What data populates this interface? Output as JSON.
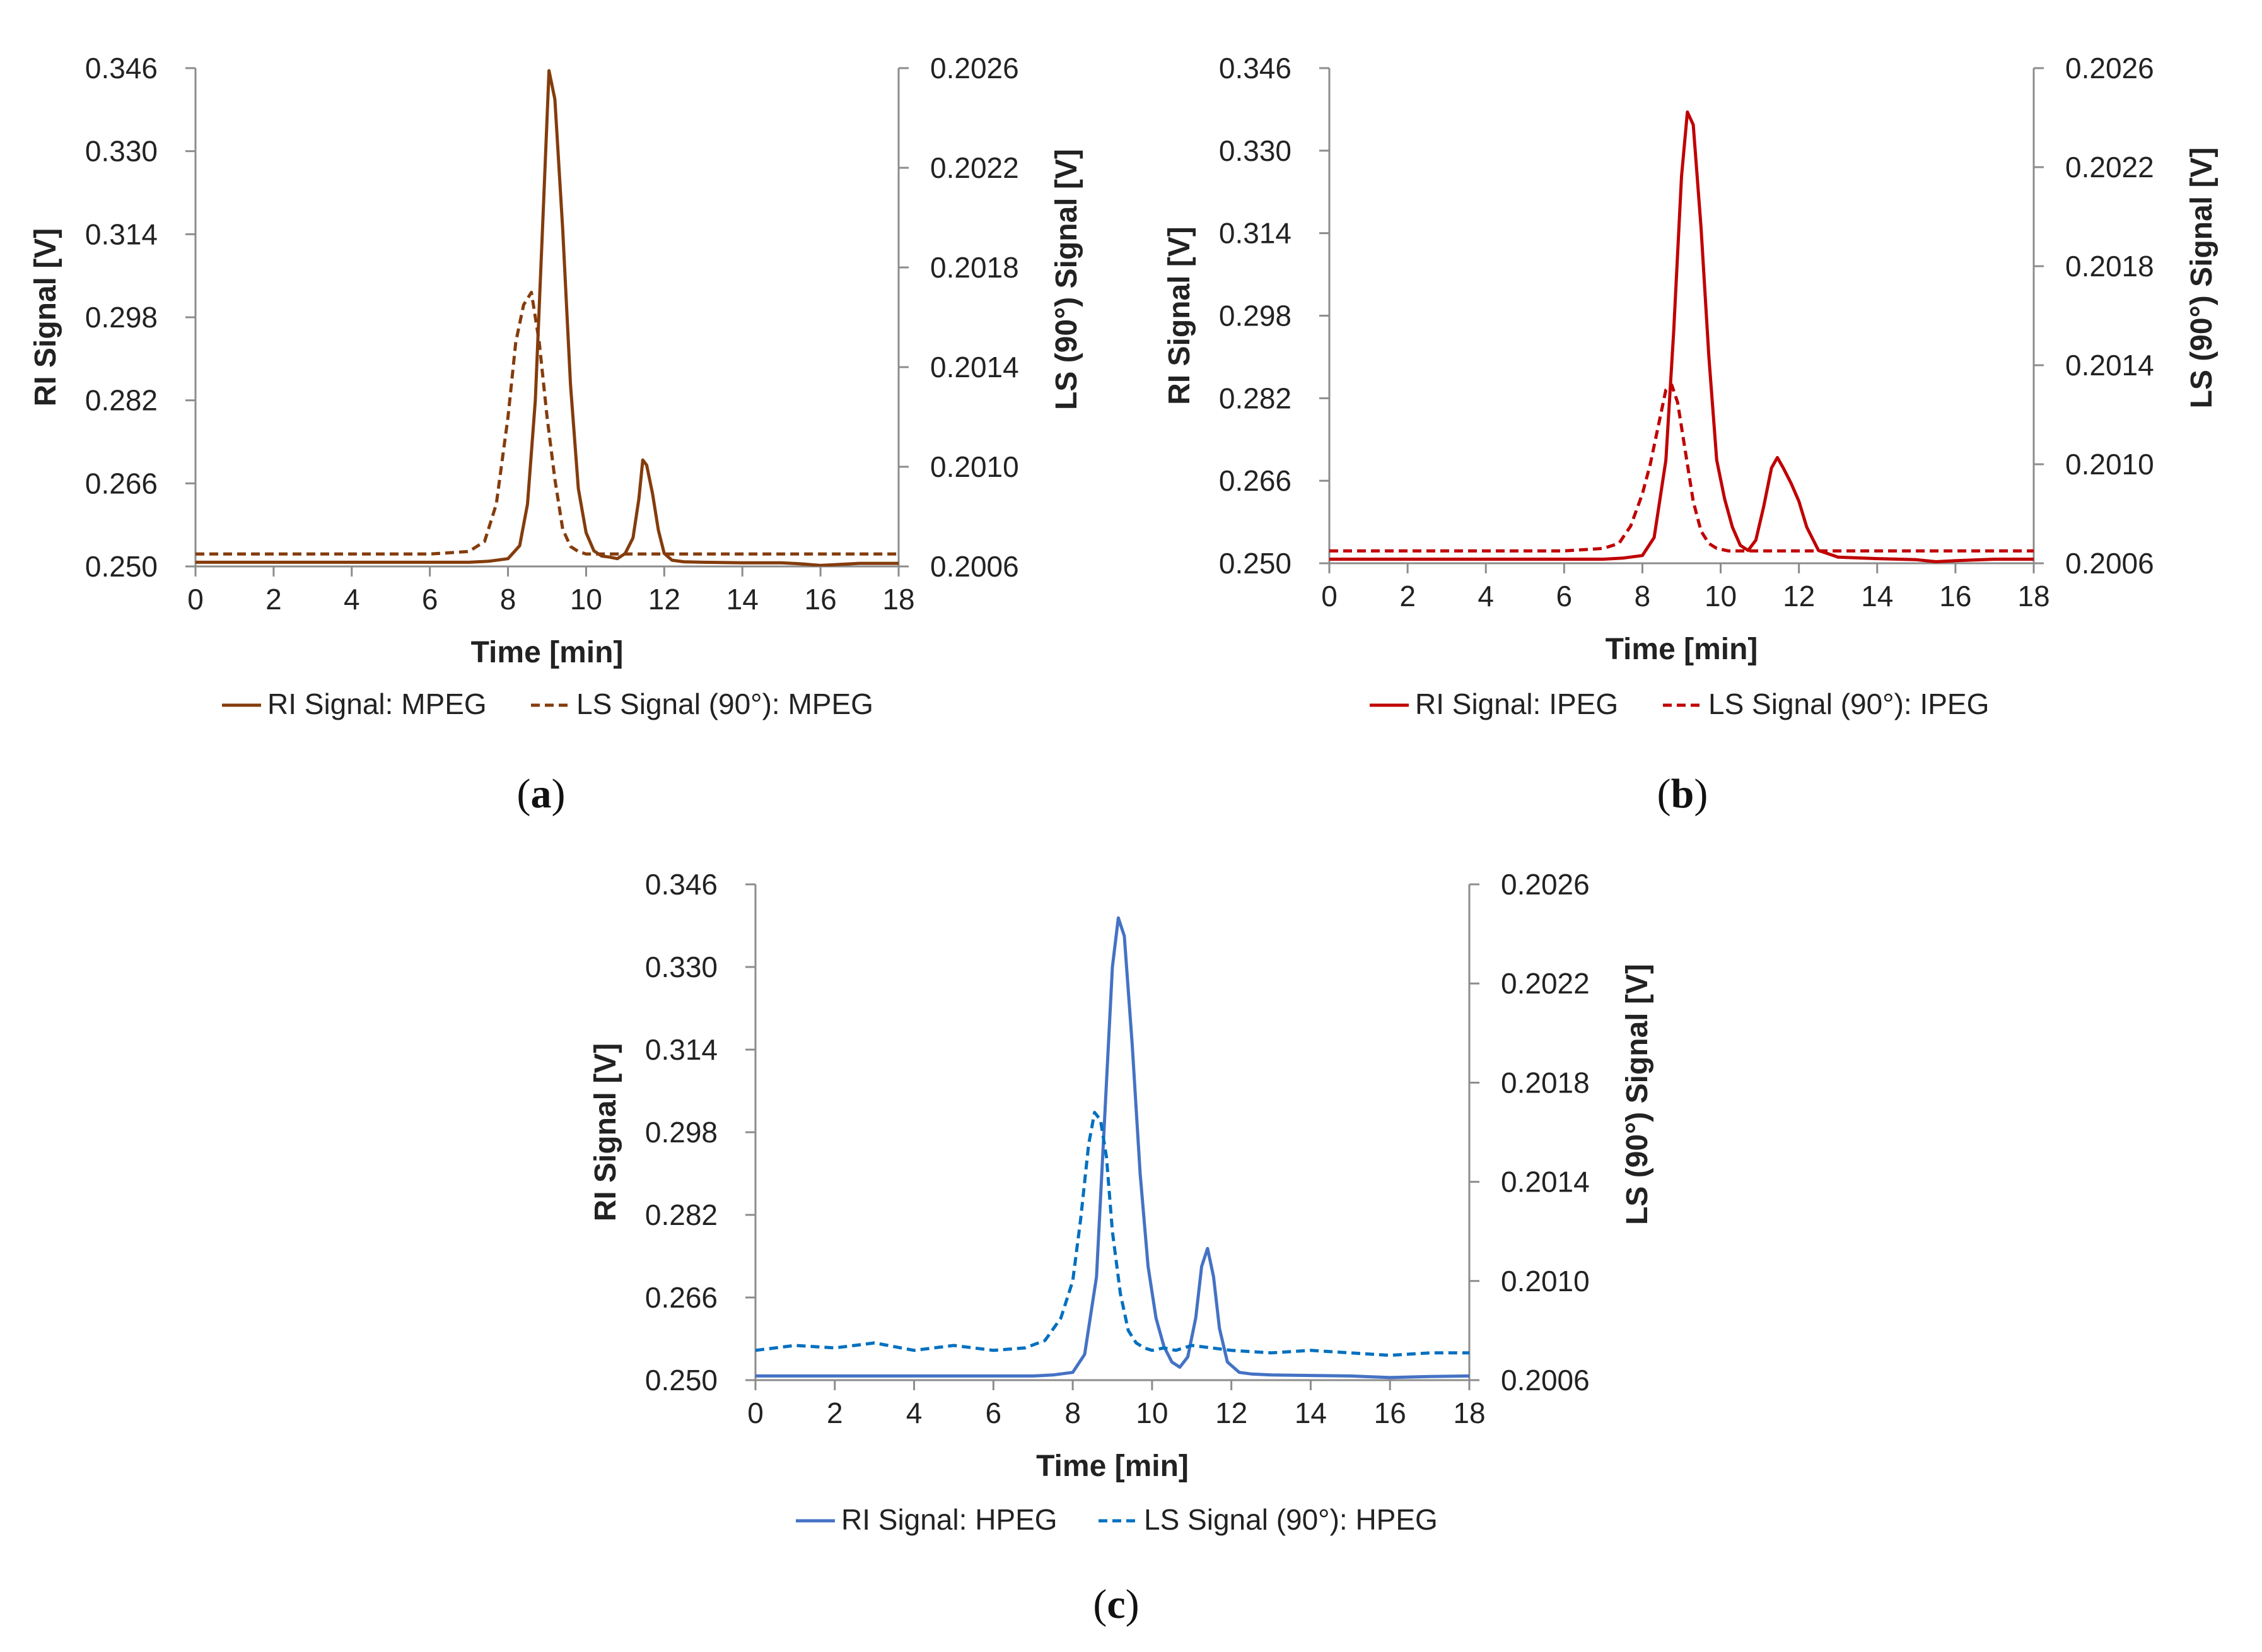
{
  "chart_data": [
    {
      "type": "line",
      "panel_label": "a",
      "panel_paren_open": "(",
      "panel_paren_close": ")",
      "xlabel": "Time [min]",
      "ylabel": "RI Signal [V]",
      "y2label": "LS (90°) Signal [V]",
      "xlim": [
        0,
        18
      ],
      "ylim": [
        0.25,
        0.346
      ],
      "y2lim": [
        0.2006,
        0.2026
      ],
      "x_ticks": [
        "0",
        "2",
        "4",
        "6",
        "8",
        "10",
        "12",
        "14",
        "16",
        "18"
      ],
      "y_ticks": [
        "0.250",
        "0.266",
        "0.282",
        "0.298",
        "0.314",
        "0.330",
        "0.346"
      ],
      "y2_ticks": [
        "0.2006",
        "0.2010",
        "0.2014",
        "0.2018",
        "0.2022",
        "0.2026"
      ],
      "color": "#843c0c",
      "series": [
        {
          "name": "RI Signal: MPEG",
          "axis": "left",
          "style": "solid",
          "x": [
            0,
            2,
            4,
            6,
            7,
            7.5,
            8,
            8.3,
            8.5,
            8.7,
            8.9,
            9.05,
            9.2,
            9.4,
            9.6,
            9.8,
            10,
            10.2,
            10.4,
            10.6,
            10.8,
            11,
            11.2,
            11.35,
            11.45,
            11.55,
            11.7,
            11.85,
            12,
            12.2,
            12.5,
            13,
            14,
            15,
            15.5,
            16,
            17,
            18
          ],
          "values": [
            0.2508,
            0.2508,
            0.2508,
            0.2508,
            0.2508,
            0.251,
            0.2515,
            0.254,
            0.262,
            0.282,
            0.318,
            0.3455,
            0.34,
            0.315,
            0.285,
            0.265,
            0.2565,
            0.253,
            0.252,
            0.2518,
            0.2515,
            0.2525,
            0.2555,
            0.263,
            0.2705,
            0.2695,
            0.264,
            0.257,
            0.2525,
            0.2512,
            0.2509,
            0.2508,
            0.2507,
            0.2507,
            0.2505,
            0.2502,
            0.2506,
            0.2506
          ]
        },
        {
          "name": "LS Signal (90°): MPEG",
          "axis": "right",
          "style": "dashed",
          "x": [
            0,
            2,
            4,
            6,
            7,
            7.4,
            7.7,
            8,
            8.2,
            8.4,
            8.6,
            8.8,
            9,
            9.2,
            9.4,
            9.6,
            9.8,
            10,
            10.5,
            11,
            12,
            14,
            16,
            18
          ],
          "values": [
            0.20065,
            0.20065,
            0.20065,
            0.20065,
            0.20066,
            0.2007,
            0.20085,
            0.2012,
            0.2015,
            0.20165,
            0.2017,
            0.2015,
            0.2012,
            0.20095,
            0.20075,
            0.20068,
            0.20066,
            0.20065,
            0.20065,
            0.20065,
            0.20065,
            0.20065,
            0.20065,
            0.20065
          ]
        }
      ]
    },
    {
      "type": "line",
      "panel_label": "b",
      "panel_paren_open": "(",
      "panel_paren_close": ")",
      "xlabel": "Time [min]",
      "ylabel": "RI Signal [V]",
      "y2label": "LS (90°) Signal [V]",
      "xlim": [
        0,
        18
      ],
      "ylim": [
        0.25,
        0.346
      ],
      "y2lim": [
        0.2006,
        0.2026
      ],
      "x_ticks": [
        "0",
        "2",
        "4",
        "6",
        "8",
        "10",
        "12",
        "14",
        "16",
        "18"
      ],
      "y_ticks": [
        "0.250",
        "0.266",
        "0.282",
        "0.298",
        "0.314",
        "0.330",
        "0.346"
      ],
      "y2_ticks": [
        "0.2006",
        "0.2010",
        "0.2014",
        "0.2018",
        "0.2022",
        "0.2026"
      ],
      "color": "#c00000",
      "series": [
        {
          "name": "RI Signal: IPEG",
          "axis": "left",
          "style": "solid",
          "x": [
            0,
            2,
            4,
            6,
            7,
            7.5,
            8,
            8.3,
            8.6,
            8.8,
            9,
            9.15,
            9.3,
            9.5,
            9.7,
            9.9,
            10.1,
            10.3,
            10.5,
            10.7,
            10.9,
            11.1,
            11.3,
            11.45,
            11.6,
            11.8,
            12,
            12.2,
            12.5,
            13,
            14,
            15,
            15.5,
            16,
            17,
            18
          ],
          "values": [
            0.2508,
            0.2508,
            0.2508,
            0.2508,
            0.2508,
            0.251,
            0.2515,
            0.255,
            0.27,
            0.295,
            0.325,
            0.3375,
            0.335,
            0.315,
            0.29,
            0.27,
            0.2625,
            0.257,
            0.2535,
            0.2525,
            0.2545,
            0.261,
            0.2685,
            0.2705,
            0.2685,
            0.2655,
            0.262,
            0.257,
            0.2525,
            0.2512,
            0.2509,
            0.2507,
            0.2503,
            0.2505,
            0.2508,
            0.2508
          ]
        },
        {
          "name": "LS Signal (90°): IPEG",
          "axis": "right",
          "style": "dashed",
          "x": [
            0,
            2,
            4,
            6,
            7,
            7.4,
            7.7,
            8,
            8.2,
            8.4,
            8.6,
            8.75,
            8.9,
            9.1,
            9.3,
            9.5,
            9.7,
            9.9,
            10.2,
            11,
            12,
            14,
            16,
            18
          ],
          "values": [
            0.20065,
            0.20065,
            0.20065,
            0.20065,
            0.20066,
            0.20068,
            0.20075,
            0.20088,
            0.201,
            0.20115,
            0.2013,
            0.20132,
            0.20125,
            0.20105,
            0.20085,
            0.20073,
            0.20068,
            0.20066,
            0.20065,
            0.20065,
            0.20065,
            0.20065,
            0.20065,
            0.20065
          ]
        }
      ]
    },
    {
      "type": "line",
      "panel_label": "c",
      "panel_paren_open": "(",
      "panel_paren_close": ")",
      "xlabel": "Time [min]",
      "ylabel": "RI Signal [V]",
      "y2label": "LS (90°) Signal [V]",
      "xlim": [
        0,
        18
      ],
      "ylim": [
        0.25,
        0.346
      ],
      "y2lim": [
        0.2006,
        0.2026
      ],
      "x_ticks": [
        "0",
        "2",
        "4",
        "6",
        "8",
        "10",
        "12",
        "14",
        "16",
        "18"
      ],
      "y_ticks": [
        "0.250",
        "0.266",
        "0.282",
        "0.298",
        "0.314",
        "0.330",
        "0.346"
      ],
      "y2_ticks": [
        "0.2006",
        "0.2010",
        "0.2014",
        "0.2018",
        "0.2022",
        "0.2026"
      ],
      "color": "#4472c4",
      "color_secondary": "#0070c0",
      "series": [
        {
          "name": "RI Signal: HPEG",
          "axis": "left",
          "style": "solid",
          "x": [
            0,
            2,
            4,
            6,
            7,
            7.5,
            8,
            8.3,
            8.6,
            8.8,
            9,
            9.15,
            9.3,
            9.5,
            9.7,
            9.9,
            10.1,
            10.3,
            10.5,
            10.7,
            10.9,
            11.1,
            11.25,
            11.4,
            11.55,
            11.7,
            11.9,
            12.2,
            12.5,
            13,
            14,
            15,
            16,
            17,
            18
          ],
          "values": [
            0.2508,
            0.2508,
            0.2508,
            0.2508,
            0.2508,
            0.251,
            0.2515,
            0.255,
            0.27,
            0.3,
            0.33,
            0.3395,
            0.336,
            0.315,
            0.29,
            0.272,
            0.262,
            0.2565,
            0.2535,
            0.2525,
            0.2545,
            0.262,
            0.272,
            0.2755,
            0.27,
            0.26,
            0.2535,
            0.2515,
            0.2512,
            0.251,
            0.2509,
            0.2508,
            0.2505,
            0.2507,
            0.2508
          ]
        },
        {
          "name": "LS Signal (90°): HPEG",
          "axis": "right",
          "style": "dashed",
          "x": [
            0,
            1,
            2,
            3,
            4,
            5,
            6,
            6.8,
            7.3,
            7.7,
            8,
            8.2,
            8.4,
            8.55,
            8.7,
            8.85,
            9,
            9.2,
            9.4,
            9.6,
            9.8,
            10,
            10.3,
            10.6,
            11,
            11.5,
            12,
            13,
            14,
            15,
            16,
            17,
            18
          ],
          "values": [
            0.20072,
            0.20074,
            0.20073,
            0.20075,
            0.20072,
            0.20074,
            0.20072,
            0.20073,
            0.20076,
            0.20085,
            0.201,
            0.20125,
            0.20155,
            0.20168,
            0.20165,
            0.2015,
            0.2012,
            0.20095,
            0.2008,
            0.20075,
            0.20073,
            0.20072,
            0.20073,
            0.20072,
            0.20074,
            0.20073,
            0.20072,
            0.20071,
            0.20072,
            0.20071,
            0.2007,
            0.20071,
            0.20071
          ]
        }
      ]
    }
  ]
}
